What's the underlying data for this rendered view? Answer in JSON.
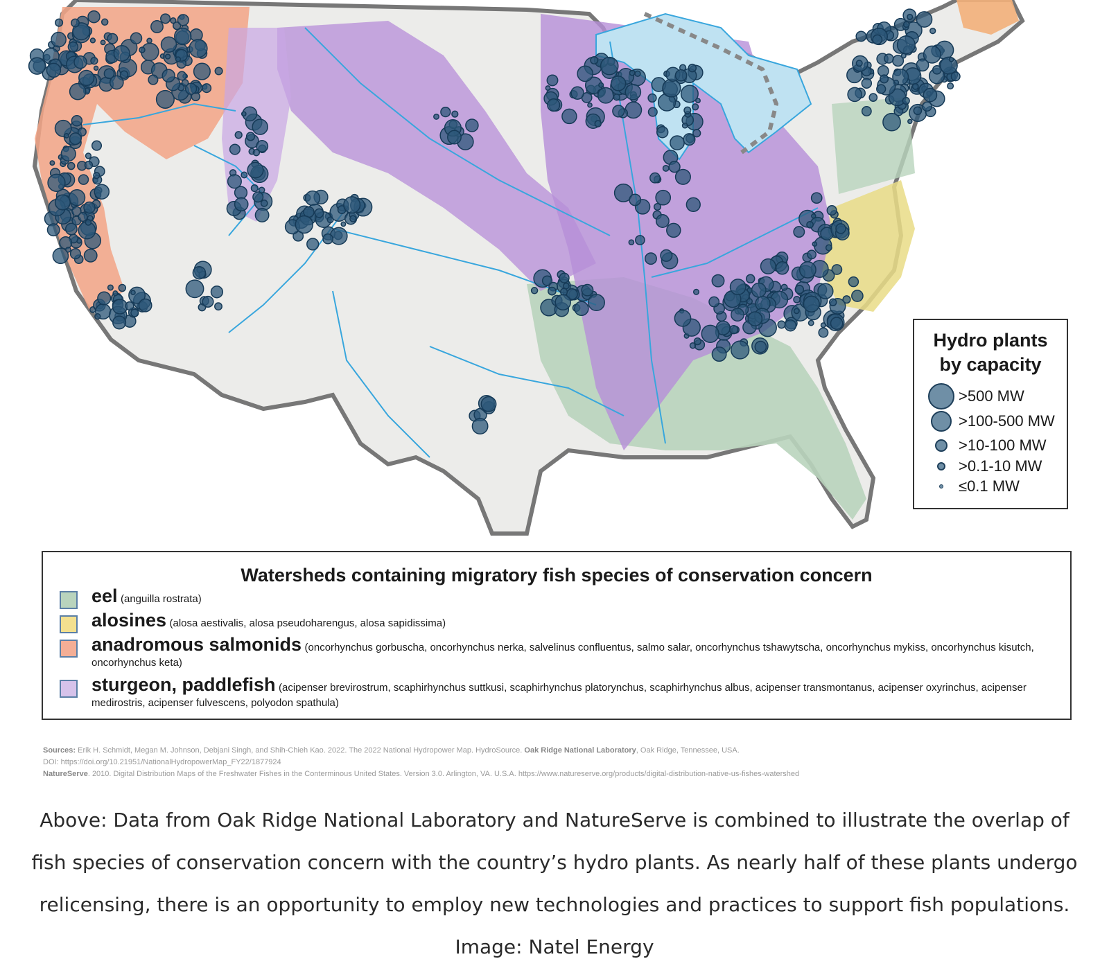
{
  "map": {
    "colors": {
      "eel": "#b9d4bd",
      "alosines": "#e9dc86",
      "anadromous_salmonids": "#f3a586",
      "sturgeon_paddlefish": "#b78ed8",
      "hydro_plant_fill": "#2e5879",
      "hydro_plant_stroke": "#163a57",
      "river": "#38a6dd",
      "lakes": "#bfe2f2",
      "land": "#ececea"
    },
    "capacity_legend": {
      "title_line1": "Hydro plants",
      "title_line2": "by capacity",
      "items": [
        {
          "label": ">500 MW",
          "icon": "large-circle"
        },
        {
          "label": ">100-500 MW",
          "icon": "medium-large-circle"
        },
        {
          "label": ">10-100 MW",
          "icon": "medium-circle"
        },
        {
          "label": ">0.1-10 MW",
          "icon": "small-circle"
        },
        {
          "label": "≤0.1 MW",
          "icon": "tiny-circle"
        }
      ]
    },
    "species_legend": {
      "title": "Watersheds containing migratory fish species of conservation concern",
      "items": [
        {
          "name": "eel",
          "scientific": "(anguilla rostrata)",
          "color": "#b9d4bd"
        },
        {
          "name": "alosines",
          "scientific": "(alosa aestivalis, alosa pseudoharengus, alosa sapidissima)",
          "color": "#f3e08f"
        },
        {
          "name": "anadromous salmonids",
          "scientific": "(oncorhynchus gorbuscha, oncorhynchus nerka, salvelinus confluentus, salmo salar, oncorhynchus tshawytscha, oncorhynchus mykiss, oncorhynchus kisutch, oncorhynchus keta)",
          "color": "#f3ae96"
        },
        {
          "name": "sturgeon, paddlefish",
          "scientific": "(acipenser brevirostrum, scaphirhynchus suttkusi, scaphirhynchus platorynchus, scaphirhynchus albus, acipenser transmontanus, acipenser oxyrinchus, acipenser medirostris, acipenser fulvescens, polyodon spathula)",
          "color": "#d6c2ea"
        }
      ]
    },
    "sources": {
      "line1_label": "Sources:",
      "line1_text": "Erik H. Schmidt, Megan M. Johnson, Debjani Singh, and Shih-Chieh Kao. 2022. The 2022 National Hydropower Map. HydroSource.",
      "line1_org": "Oak Ridge National Laboratory",
      "line1_end": ", Oak Ridge, Tennessee, USA.",
      "line2": "DOI: https://doi.org/10.21951/NationalHydropowerMap_FY22/1877924",
      "line3_org": "NatureServe",
      "line3_text": ". 2010. Digital Distribution Maps of the Freshwater Fishes in the Conterminous United States. Version 3.0. Arlington, VA. U.S.A. https://www.natureserve.org/products/digital-distribution-native-us-fishes-watershed"
    }
  },
  "caption": "Above: Data from Oak Ridge National Laboratory and NatureServe is combined to illustrate the overlap of fish species of conservation concern with the country’s hydro plants. As nearly half of these plants undergo relicensing, there is an opportunity to employ new technologies and practices to support fish populations. Image: Natel Energy"
}
